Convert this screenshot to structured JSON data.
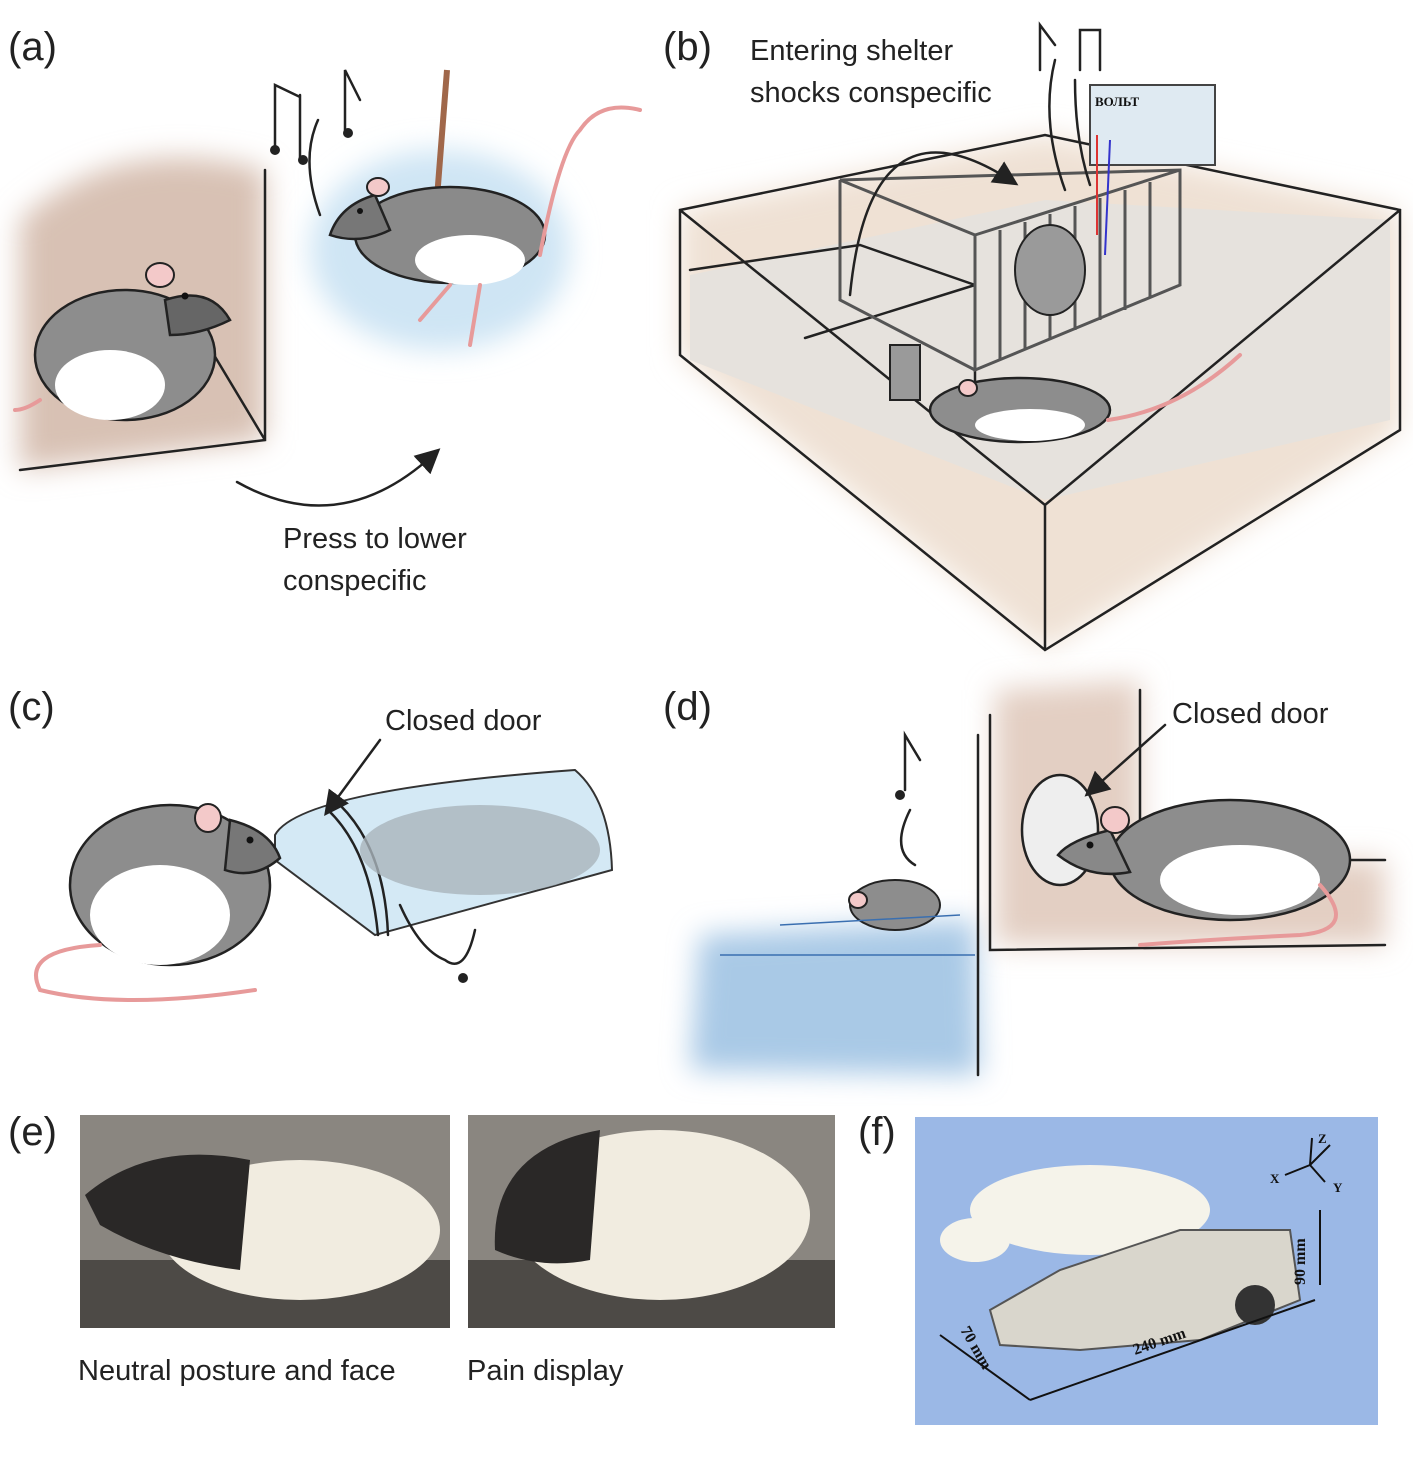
{
  "panels": {
    "a": {
      "label": "(a)",
      "caption": [
        "Press to lower",
        "conspecific"
      ]
    },
    "b": {
      "label": "(b)",
      "caption": [
        "Entering shelter",
        "shocks conspecific"
      ],
      "meter_label": "ВОЛЬТ"
    },
    "c": {
      "label": "(c)",
      "callout": "Closed door"
    },
    "d": {
      "label": "(d)",
      "callout": "Closed door"
    },
    "e": {
      "label": "(e)",
      "photos": [
        {
          "caption": "Neutral posture and face"
        },
        {
          "caption": "Pain display"
        }
      ]
    },
    "f": {
      "label": "(f)",
      "axes": [
        "X",
        "Y",
        "Z"
      ],
      "dimensions": [
        "240 mm",
        "70 mm",
        "90 mm"
      ]
    }
  }
}
